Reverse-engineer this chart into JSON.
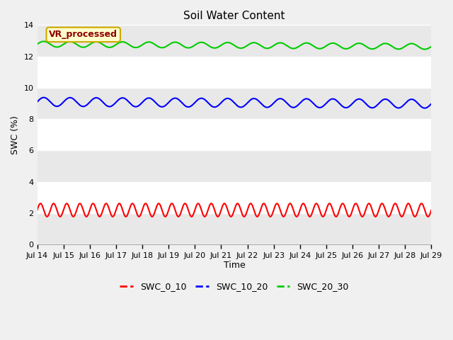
{
  "title": "Soil Water Content",
  "xlabel": "Time",
  "ylabel": "SWC (%)",
  "ylim": [
    0,
    14
  ],
  "yticks": [
    0,
    2,
    4,
    6,
    8,
    10,
    12,
    14
  ],
  "x_start_day": 14,
  "x_end_day": 29,
  "x_tick_days": [
    14,
    15,
    16,
    17,
    18,
    19,
    20,
    21,
    22,
    23,
    24,
    25,
    26,
    27,
    28,
    29
  ],
  "series": [
    {
      "label": "SWC_0_10",
      "color": "#ff0000",
      "mean": 2.2,
      "amplitude": 0.42,
      "frequency_per_day": 2.0,
      "trend": 0.0
    },
    {
      "label": "SWC_10_20",
      "color": "#0000ff",
      "mean": 9.1,
      "amplitude": 0.28,
      "frequency_per_day": 1.0,
      "trend": -0.008
    },
    {
      "label": "SWC_20_30",
      "color": "#00cc00",
      "mean": 12.78,
      "amplitude": 0.18,
      "frequency_per_day": 1.0,
      "trend": -0.01
    }
  ],
  "annotation_text": "VR_processed",
  "background_color": "#f0f0f0",
  "plot_bg_color": "#ffffff",
  "band_color_even": "#e8e8e8",
  "band_color_odd": "#ffffff",
  "grid_color": "#ffffff",
  "title_fontsize": 11,
  "axis_label_fontsize": 9,
  "tick_fontsize": 8
}
